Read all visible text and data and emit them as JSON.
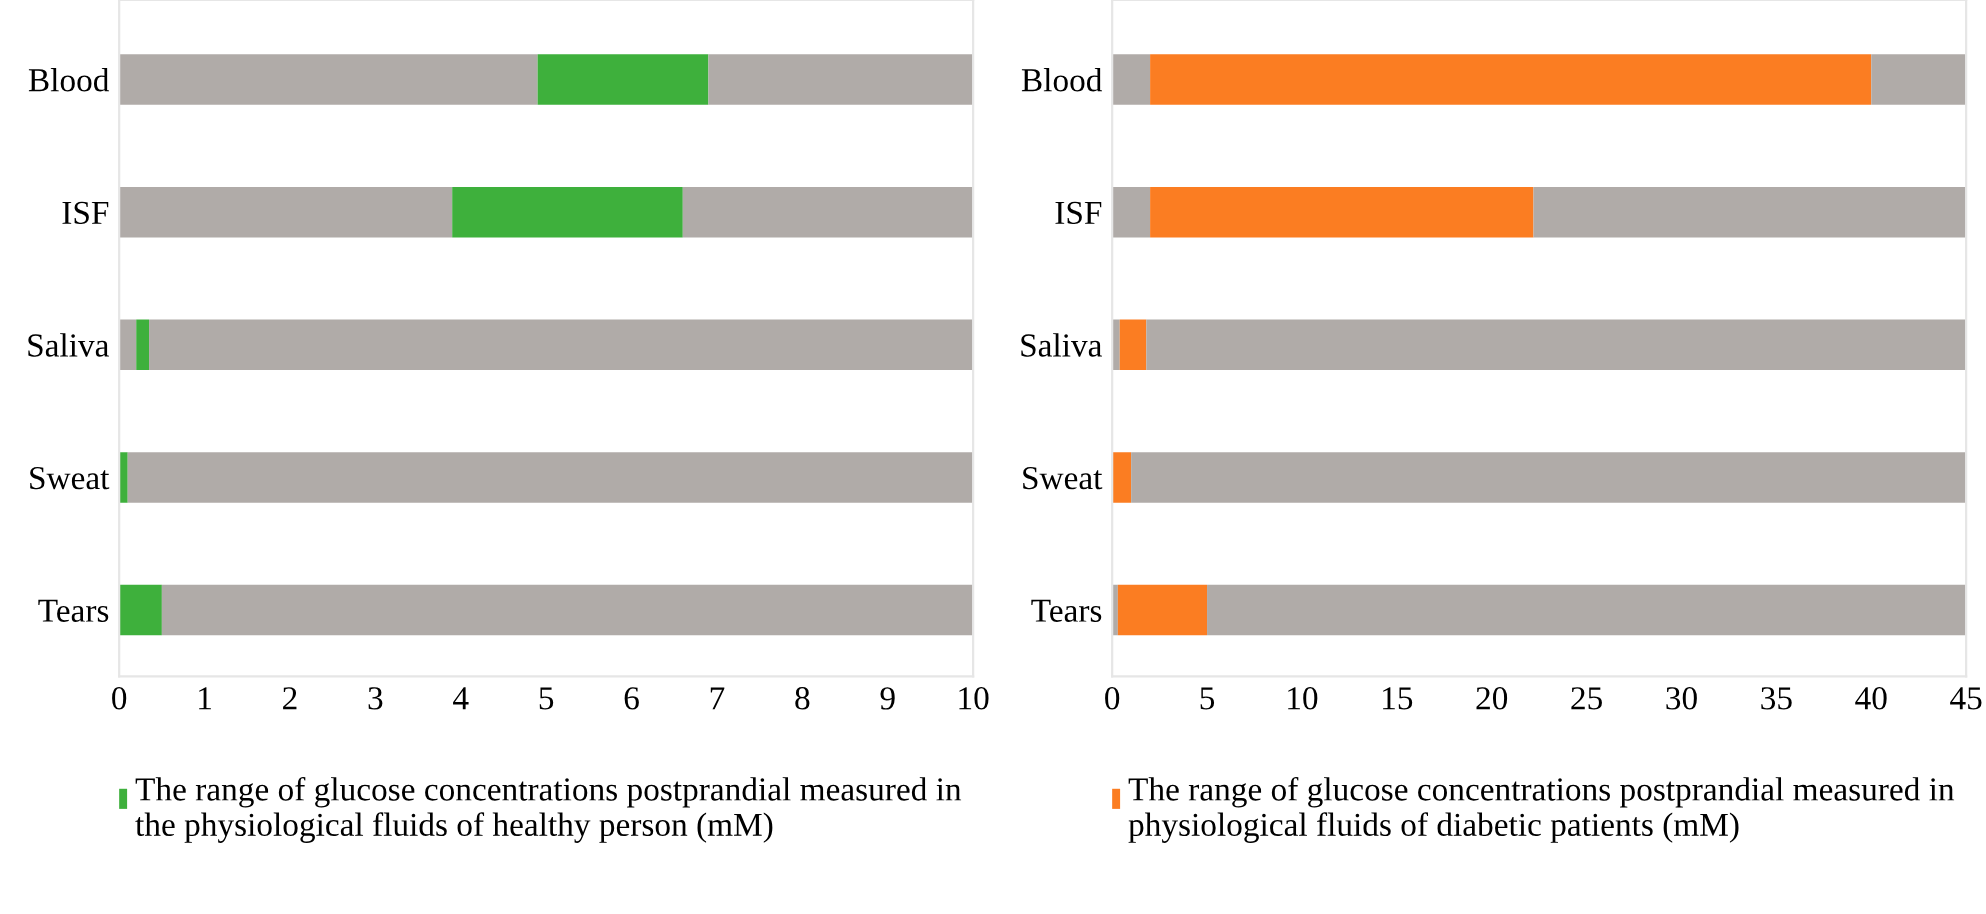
{
  "chart_data": [
    {
      "type": "bar",
      "orientation": "horizontal",
      "stacked": true,
      "categories": [
        "Blood",
        "ISF",
        "Saliva",
        "Sweat",
        "Tears"
      ],
      "xlim": [
        0,
        10
      ],
      "xticks": [
        0,
        1,
        2,
        3,
        4,
        5,
        6,
        7,
        8,
        9,
        10
      ],
      "legend": "bottom",
      "grid": false,
      "series": [
        {
          "color": "#b0aba8",
          "values": [
            4.9,
            3.9,
            0.2,
            0,
            0
          ]
        },
        {
          "name": "The range of glucose concentrations postprandial measured in the physiological fluids of healthy person (mM)",
          "color": "#3eb03c",
          "values": [
            2.0,
            2.7,
            0.15,
            0.1,
            0.5
          ]
        },
        {
          "color": "#b0aba8",
          "values": [
            3.1,
            3.4,
            9.65,
            9.9,
            9.5
          ]
        }
      ]
    },
    {
      "type": "bar",
      "orientation": "horizontal",
      "stacked": true,
      "categories": [
        "Blood",
        "ISF",
        "Saliva",
        "Sweat",
        "Tears"
      ],
      "xlim": [
        0,
        45
      ],
      "xticks": [
        0,
        5,
        10,
        15,
        20,
        25,
        30,
        35,
        40,
        45
      ],
      "legend": "bottom",
      "grid": false,
      "series": [
        {
          "color": "#b0aba8",
          "values": [
            2.0,
            2.0,
            0.4,
            0,
            0.3
          ]
        },
        {
          "name": "The range of glucose concentrations postprandial measured in physiological fluids of diabetic patients (mM)",
          "color": "#fb7d22",
          "values": [
            38,
            20.2,
            1.4,
            1.0,
            4.7
          ]
        },
        {
          "color": "#b0aba8",
          "values": [
            5,
            22.8,
            43.2,
            44,
            40
          ]
        }
      ]
    }
  ]
}
